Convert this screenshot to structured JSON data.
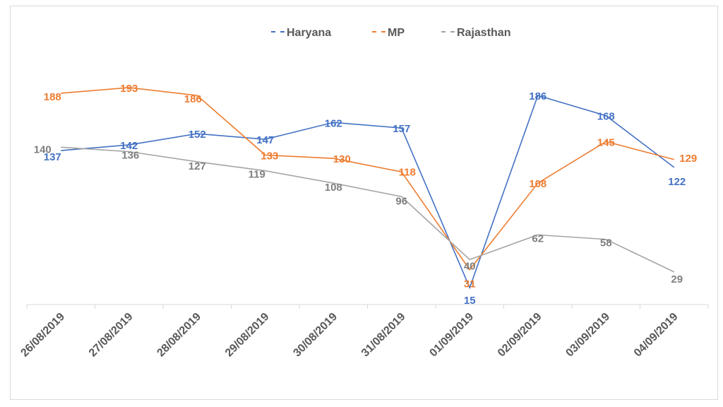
{
  "chart_data": {
    "type": "line",
    "title": "",
    "xlabel": "",
    "ylabel": "",
    "ylim": [
      0,
      220
    ],
    "grid": false,
    "legend": "top-center",
    "categories": [
      "26/08/2019",
      "27/08/2019",
      "28/08/2019",
      "29/08/2019",
      "30/08/2019",
      "31/08/2019",
      "01/09/2019",
      "02/09/2019",
      "03/09/2019",
      "04/09/2019"
    ],
    "series": [
      {
        "name": "Haryana",
        "color": "#4472c4",
        "values": [
          137,
          142,
          152,
          147,
          162,
          157,
          15,
          186,
          168,
          122
        ]
      },
      {
        "name": "MP",
        "color": "#ed7d31",
        "values": [
          188,
          193,
          186,
          133,
          130,
          118,
          31,
          108,
          145,
          129
        ]
      },
      {
        "name": "Rajasthan",
        "color": "#a5a5a5",
        "label_color": "#7f7f7f",
        "values": [
          140,
          136,
          127,
          119,
          108,
          96,
          40,
          62,
          58,
          29
        ]
      }
    ]
  }
}
